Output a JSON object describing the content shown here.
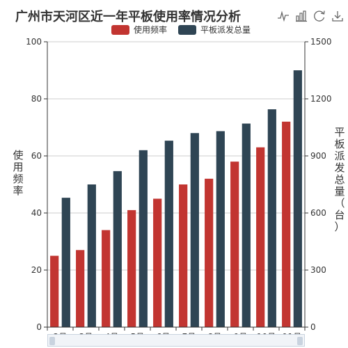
{
  "title": "广州市天河区近一年平板使用率情况分析",
  "toolbox": [
    "line-chart-icon",
    "bar-chart-icon",
    "restore-icon",
    "download-icon"
  ],
  "legend": [
    {
      "label": "使用频率",
      "color": "#c23531"
    },
    {
      "label": "平板派发总量",
      "color": "#2f4554"
    }
  ],
  "chart_data": {
    "type": "bar",
    "title": "广州市天河区近一年平板使用率情况分析",
    "categories": [
      "2月",
      "3月",
      "4月",
      "5月",
      "6月",
      "7月",
      "8月",
      "9月",
      "10月",
      "11月"
    ],
    "series": [
      {
        "name": "使用频率",
        "axis": "left",
        "color": "#c23531",
        "values": [
          25,
          27,
          34,
          41,
          45,
          50,
          52,
          58,
          63,
          72
        ]
      },
      {
        "name": "平板派发总量",
        "axis": "right",
        "color": "#2f4554",
        "values": [
          680,
          750,
          820,
          930,
          980,
          1020,
          1030,
          1070,
          1145,
          1350
        ]
      }
    ],
    "ylabel_left": "使用频率",
    "ylabel_right": "平板派发总量（台）",
    "ylim_left": [
      0,
      100
    ],
    "ylim_right": [
      0,
      1500
    ],
    "yticks_left": [
      0,
      20,
      40,
      60,
      80,
      100
    ],
    "yticks_right": [
      0,
      300,
      600,
      900,
      1200,
      1500
    ],
    "grid": true,
    "legend_position": "top"
  }
}
